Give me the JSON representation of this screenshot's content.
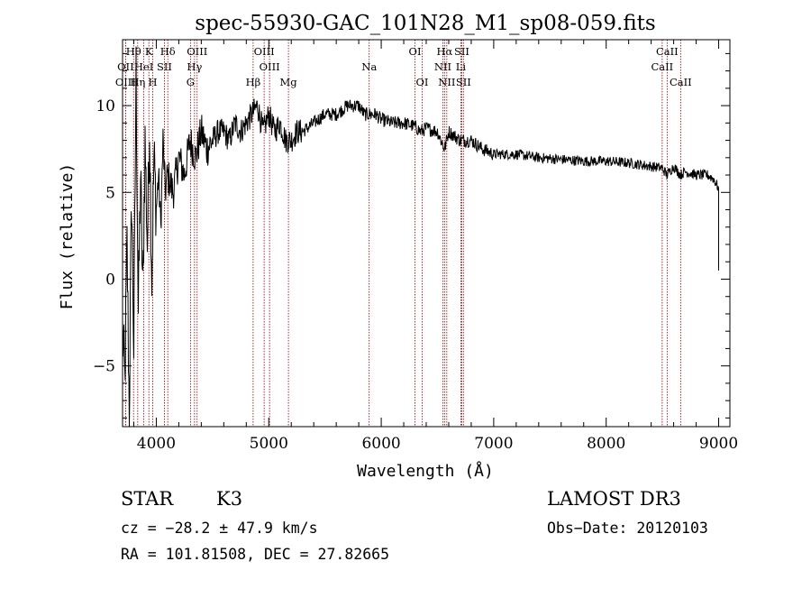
{
  "chart_data": {
    "type": "line",
    "title": "spec-55930-GAC_101N28_M1_sp08-059.fits",
    "xlabel": "Wavelength (Å)",
    "ylabel": "Flux (relative)",
    "xlim": [
      3700,
      9100
    ],
    "ylim": [
      -8.5,
      13.8
    ],
    "xticks": [
      4000,
      5000,
      6000,
      7000,
      8000,
      9000
    ],
    "xtick_labels": [
      "4000",
      "5000",
      "6000",
      "7000",
      "8000",
      "9000"
    ],
    "yticks": [
      -5,
      0,
      5,
      10
    ],
    "ytick_labels": [
      "−5",
      "0",
      "5",
      "10"
    ],
    "series": [
      {
        "name": "spectrum",
        "x": [
          3700,
          3720,
          3740,
          3760,
          3780,
          3800,
          3820,
          3840,
          3860,
          3880,
          3900,
          3920,
          3940,
          3960,
          3980,
          4000,
          4020,
          4040,
          4060,
          4080,
          4100,
          4150,
          4200,
          4250,
          4300,
          4350,
          4400,
          4450,
          4500,
          4550,
          4600,
          4650,
          4700,
          4750,
          4800,
          4850,
          4900,
          4950,
          5000,
          5050,
          5100,
          5150,
          5200,
          5250,
          5300,
          5400,
          5500,
          5600,
          5700,
          5800,
          5850,
          5900,
          5950,
          6000,
          6100,
          6200,
          6300,
          6350,
          6400,
          6500,
          6563,
          6600,
          6700,
          6800,
          6900,
          7000,
          7200,
          7400,
          7600,
          7800,
          8000,
          8200,
          8400,
          8500,
          8540,
          8600,
          8660,
          8700,
          8800,
          8900,
          8950,
          8980,
          9000,
          9000
        ],
        "y": [
          -3,
          -6,
          2,
          -8,
          5,
          -4,
          12,
          -2,
          6,
          -1,
          8,
          2,
          9,
          0,
          7,
          4,
          6,
          3,
          8,
          5,
          6,
          5,
          7,
          6,
          8,
          7,
          8.5,
          7.5,
          8,
          8.5,
          8.5,
          8,
          9,
          8.5,
          9,
          9.5,
          10,
          8.5,
          9.5,
          8.5,
          9,
          8,
          8,
          8.5,
          8.5,
          9,
          9.5,
          9.5,
          10,
          10,
          9.5,
          9.5,
          9.5,
          9.2,
          9,
          9,
          8.8,
          8.5,
          8.7,
          8.5,
          7.5,
          8.5,
          8,
          8,
          7.5,
          7.2,
          7.2,
          7,
          6.9,
          6.8,
          6.8,
          6.7,
          6.5,
          6.4,
          6,
          6.5,
          6,
          6.2,
          6,
          6,
          5.8,
          5.5,
          5.2,
          0.5
        ]
      }
    ],
    "lines": [
      {
        "label": "Hθ",
        "wavelength": 3798,
        "row": 1
      },
      {
        "label": "OII",
        "wavelength": 3727,
        "row": 2
      },
      {
        "label": "OIII",
        "wavelength": 3727,
        "row": 3
      },
      {
        "label": "Hη",
        "wavelength": 3835,
        "row": 3
      },
      {
        "label": "K",
        "wavelength": 3934,
        "row": 1
      },
      {
        "label": "HeI",
        "wavelength": 3889,
        "row": 2
      },
      {
        "label": "Hδ",
        "wavelength": 4102,
        "row": 1
      },
      {
        "label": "SII",
        "wavelength": 4072,
        "row": 2
      },
      {
        "label": "H",
        "wavelength": 3969,
        "row": 3
      },
      {
        "label": "OIII",
        "wavelength": 4363,
        "row": 1
      },
      {
        "label": "Hγ",
        "wavelength": 4340,
        "row": 2
      },
      {
        "label": "G",
        "wavelength": 4304,
        "row": 3
      },
      {
        "label": "OIII",
        "wavelength": 4959,
        "row": 1
      },
      {
        "label": "OIII",
        "wavelength": 5007,
        "row": 2
      },
      {
        "label": "Hβ",
        "wavelength": 4861,
        "row": 3
      },
      {
        "label": "Mg",
        "wavelength": 5175,
        "row": 3
      },
      {
        "label": "Na",
        "wavelength": 5893,
        "row": 2
      },
      {
        "label": "OI",
        "wavelength": 6300,
        "row": 1
      },
      {
        "label": "OI",
        "wavelength": 6364,
        "row": 3
      },
      {
        "label": "Hα",
        "wavelength": 6563,
        "row": 1
      },
      {
        "label": "SII",
        "wavelength": 6716,
        "row": 1
      },
      {
        "label": "NII",
        "wavelength": 6548,
        "row": 2
      },
      {
        "label": "Li",
        "wavelength": 6708,
        "row": 2
      },
      {
        "label": "NII",
        "wavelength": 6583,
        "row": 3
      },
      {
        "label": "SII",
        "wavelength": 6731,
        "row": 3
      },
      {
        "label": "CaII",
        "wavelength": 8542,
        "row": 1
      },
      {
        "label": "CaII",
        "wavelength": 8498,
        "row": 2
      },
      {
        "label": "CaII",
        "wavelength": 8662,
        "row": 3
      }
    ],
    "line_color": "#8b0000",
    "spectrum_color": "#000000"
  },
  "info": {
    "class": "STAR",
    "subclass": "K3",
    "survey": "LAMOST DR3",
    "cz": "cz = −28.2 ± 47.9 km/s",
    "obs_date": "Obs−Date: 20120103",
    "radec": "RA = 101.81508, DEC =  27.82665"
  }
}
